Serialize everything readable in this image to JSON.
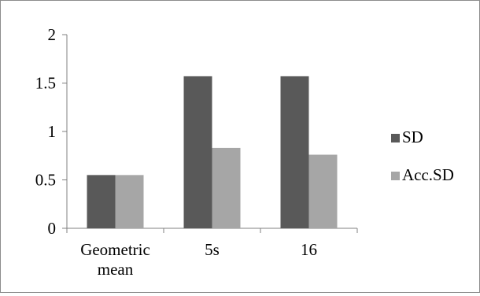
{
  "chart_data": {
    "type": "bar",
    "categories": [
      "Geometric mean",
      "5s",
      "16"
    ],
    "category_label_lines": [
      [
        "Geometric",
        "mean"
      ],
      [
        "5s"
      ],
      [
        "16"
      ]
    ],
    "series": [
      {
        "name": "SD",
        "color": "#595959",
        "values": [
          0.55,
          1.57,
          1.57
        ]
      },
      {
        "name": "Acc.SD",
        "color": "#a6a6a6",
        "values": [
          0.55,
          0.83,
          0.76
        ]
      }
    ],
    "ylim": [
      0,
      2
    ],
    "yticks": [
      "0",
      "0.5",
      "1",
      "1.5",
      "2"
    ],
    "title": "",
    "xlabel": "",
    "ylabel": "",
    "grid": false,
    "legend_position": "right"
  }
}
